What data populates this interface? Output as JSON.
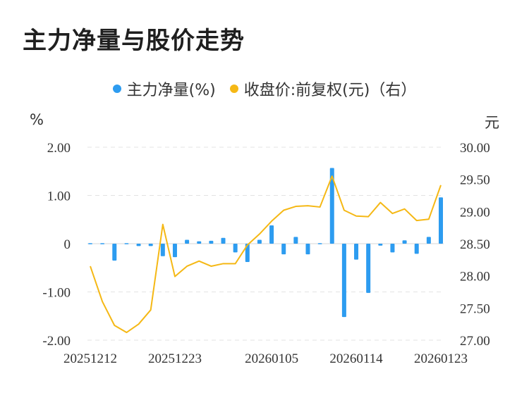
{
  "title": "主力净量与股价走势",
  "legend": [
    {
      "label": "主力净量(%)",
      "color": "#2d9cf0"
    },
    {
      "label": "收盘价:前复权(元)（右）",
      "color": "#f5b815"
    }
  ],
  "units": {
    "left": "%",
    "right": "元"
  },
  "chart_data": {
    "type": "bar",
    "categories": [
      "20251212",
      "20251215",
      "20251216",
      "20251217",
      "20251218",
      "20251219",
      "20251222",
      "20251223",
      "20251224",
      "20251225",
      "20251226",
      "20251229",
      "20251230",
      "20251231",
      "20260102",
      "20260105",
      "20260106",
      "20260107",
      "20260108",
      "20260109",
      "20260112",
      "20260113",
      "20260114",
      "20260115",
      "20260116",
      "20260119",
      "20260120",
      "20260121",
      "20260122",
      "20260123"
    ],
    "x_tick_labels": [
      "20251212",
      "20251223",
      "20260105",
      "20260114",
      "20260123"
    ],
    "series": [
      {
        "name": "主力净量(%)",
        "type": "bar",
        "axis": "left",
        "values": [
          -0.02,
          -0.02,
          -0.35,
          0.0,
          -0.05,
          -0.05,
          -0.26,
          -0.28,
          0.08,
          0.05,
          0.06,
          0.12,
          -0.18,
          -0.38,
          0.08,
          0.38,
          -0.22,
          0.14,
          -0.22,
          0.0,
          1.57,
          -1.52,
          -0.33,
          -1.02,
          -0.04,
          -0.18,
          0.07,
          -0.21,
          0.14,
          0.96
        ]
      },
      {
        "name": "收盘价:前复权(元)（右）",
        "type": "line",
        "axis": "right",
        "values": [
          28.15,
          27.6,
          27.23,
          27.12,
          27.25,
          27.47,
          28.8,
          27.99,
          28.15,
          28.23,
          28.15,
          28.19,
          28.19,
          28.48,
          28.65,
          28.85,
          29.02,
          29.08,
          29.09,
          29.07,
          29.55,
          29.02,
          28.93,
          28.92,
          29.14,
          28.97,
          29.04,
          28.86,
          28.88,
          29.41
        ]
      }
    ],
    "y_left": {
      "ticks": [
        "2.00",
        "1.00",
        "0",
        "-1.00",
        "-2.00"
      ],
      "ylim": [
        -2.0,
        2.0
      ]
    },
    "y_right": {
      "ticks": [
        "30.00",
        "29.50",
        "29.00",
        "28.50",
        "28.00",
        "27.50",
        "27.00"
      ],
      "ylim": [
        27.0,
        30.0
      ]
    },
    "grid": true
  }
}
